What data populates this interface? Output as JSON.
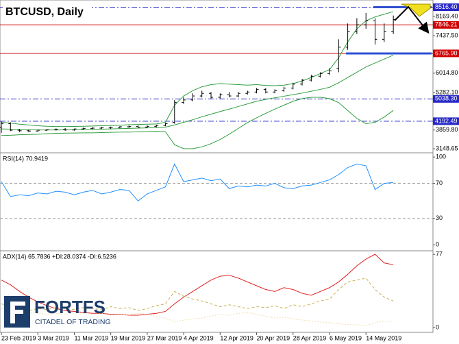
{
  "chart_data": [
    {
      "type": "ohlc",
      "title": "BTCUSD, Daily",
      "color": "#000000",
      "x": [
        0,
        2,
        4,
        6,
        8,
        10,
        12,
        14,
        16,
        18,
        20,
        22,
        24,
        26,
        28,
        30,
        32,
        34,
        36,
        38,
        40,
        42,
        44,
        46,
        48,
        50,
        52,
        54,
        56,
        58,
        60,
        62,
        64,
        66,
        68,
        70,
        72,
        74,
        76,
        78,
        80,
        82,
        84,
        86
      ],
      "xlim": [
        -0.3,
        94.7
      ],
      "xticks": [
        {
          "value": 0,
          "label": "23 Feb 2019"
        },
        {
          "value": 8,
          "label": "3 Mar 2019"
        },
        {
          "value": 16,
          "label": "11 Mar 2019"
        },
        {
          "value": 24,
          "label": "19 Mar 2019"
        },
        {
          "value": 32,
          "label": "27 Mar 2019"
        },
        {
          "value": 40,
          "label": "4 Apr 2019"
        },
        {
          "value": 48,
          "label": "12 Apr 2019"
        },
        {
          "value": 56,
          "label": "20 Apr 2019"
        },
        {
          "value": 64,
          "label": "28 Apr 2019"
        },
        {
          "value": 72,
          "label": "6 May 2019"
        },
        {
          "value": 80,
          "label": "14 May 2019"
        }
      ],
      "open": [
        3950,
        4100,
        3850,
        3830,
        3820,
        3850,
        3870,
        3880,
        3860,
        3900,
        3920,
        3930,
        3940,
        3960,
        3980,
        3990,
        3970,
        4000,
        4030,
        4150,
        4900,
        5000,
        5150,
        5250,
        5100,
        5200,
        5150,
        5250,
        5300,
        5400,
        5300,
        5350,
        5450,
        5600,
        5750,
        5900,
        6000,
        6200,
        7000,
        7600,
        7850,
        8000,
        7300,
        7600
      ],
      "high": [
        4200,
        4150,
        3900,
        3880,
        3880,
        3900,
        3920,
        3930,
        3910,
        3950,
        3970,
        3980,
        3990,
        4010,
        4030,
        4040,
        4030,
        4060,
        4120,
        5000,
        5100,
        5250,
        5350,
        5300,
        5250,
        5300,
        5300,
        5350,
        5450,
        5450,
        5400,
        5500,
        5650,
        5800,
        5950,
        6050,
        6200,
        7300,
        7900,
        8100,
        8300,
        8100,
        7900,
        8200
      ],
      "low": [
        3750,
        3820,
        3780,
        3780,
        3790,
        3820,
        3840,
        3830,
        3830,
        3860,
        3890,
        3900,
        3900,
        3920,
        3940,
        3940,
        3930,
        3960,
        4000,
        4100,
        4850,
        4950,
        5100,
        5050,
        5050,
        5100,
        5100,
        5200,
        5250,
        5250,
        5250,
        5300,
        5400,
        5550,
        5700,
        5850,
        5950,
        6050,
        6900,
        7500,
        7700,
        7100,
        7200,
        7500
      ],
      "close": [
        4100,
        3850,
        3830,
        3820,
        3850,
        3870,
        3880,
        3860,
        3900,
        3920,
        3930,
        3940,
        3960,
        3980,
        3990,
        3970,
        4000,
        4030,
        4100,
        4900,
        5000,
        5150,
        5250,
        5100,
        5200,
        5150,
        5250,
        5300,
        5400,
        5300,
        5350,
        5450,
        5600,
        5750,
        5900,
        6000,
        6100,
        7000,
        7600,
        7850,
        8000,
        7300,
        7600,
        8050
      ],
      "series": [
        {
          "color": "#2e9e3e",
          "values": [
            4150,
            4120,
            4080,
            4050,
            4020,
            4000,
            3990,
            3990,
            3995,
            4000,
            4010,
            4020,
            4030,
            4040,
            4060,
            4070,
            4080,
            4090,
            4150,
            4800,
            5150,
            5350,
            5500,
            5580,
            5620,
            5600,
            5580,
            5560,
            5580,
            5550,
            5540,
            5560,
            5620,
            5720,
            5850,
            6000,
            6150,
            6600,
            7200,
            7700,
            8000,
            8150,
            8250,
            8350
          ]
        },
        {
          "color": "#2e9e3e",
          "values": [
            3900,
            3890,
            3880,
            3870,
            3860,
            3860,
            3860,
            3865,
            3870,
            3875,
            3880,
            3890,
            3900,
            3910,
            3920,
            3930,
            3940,
            3950,
            3970,
            4050,
            4150,
            4250,
            4360,
            4460,
            4560,
            4650,
            4750,
            4850,
            4950,
            5020,
            5080,
            5140,
            5200,
            5260,
            5330,
            5400,
            5480,
            5650,
            5850,
            6050,
            6250,
            6400,
            6550,
            6700
          ]
        },
        {
          "color": "#2e9e3e",
          "values": [
            3650,
            3660,
            3680,
            3690,
            3700,
            3720,
            3730,
            3740,
            3745,
            3750,
            3750,
            3760,
            3770,
            3780,
            3780,
            3790,
            3800,
            3810,
            3790,
            3300,
            3150,
            3150,
            3220,
            3340,
            3500,
            3700,
            3920,
            4140,
            4320,
            4490,
            4650,
            4800,
            4950,
            5050,
            5100,
            5100,
            5050,
            4900,
            4600,
            4300,
            4100,
            4150,
            4350,
            4600
          ]
        }
      ],
      "ylim": [
        3020,
        8790
      ],
      "yticks": [
        {
          "value": 8169.4,
          "label": "8169.40"
        },
        {
          "value": 7437.5,
          "label": "7437.50"
        },
        {
          "value": 6014.8,
          "label": "6014.80"
        },
        {
          "value": 5282.1,
          "label": "5282.10"
        },
        {
          "value": 3859.8,
          "label": "3859.80"
        },
        3148.65
      ],
      "levels": [
        {
          "value": 8516.4,
          "label": "8516.40",
          "color": "#2828c8",
          "style": "dashdot"
        },
        {
          "value": 7846.21,
          "label": "7846.21",
          "color": "#d00000",
          "style": "solid"
        },
        {
          "value": 6765.9,
          "label": "6765.90",
          "color": "#d00000",
          "style": "solid"
        },
        {
          "value": 5038.3,
          "label": "5038.30",
          "color": "#2828c8",
          "style": "dashdot"
        },
        {
          "value": 4192.49,
          "label": "4192.49",
          "color": "#2828c8",
          "style": "dashdot"
        }
      ]
    },
    {
      "type": "line",
      "title": "RSI(14) 70.9419",
      "series": [
        {
          "color": "#1e8fff",
          "values": [
            72,
            55,
            57,
            56,
            59,
            58,
            61,
            60,
            57,
            60,
            62,
            58,
            60,
            63,
            62,
            50,
            58,
            62,
            66,
            92,
            72,
            74,
            76,
            73,
            75,
            64,
            67,
            66,
            68,
            67,
            70,
            65,
            64,
            67,
            68,
            71,
            74,
            80,
            88,
            92,
            90,
            63,
            70,
            71
          ]
        }
      ],
      "ylim": [
        -6,
        104
      ],
      "yticks": [
        100,
        70,
        30,
        0
      ],
      "levels": [
        {
          "value": 70,
          "color": "#999999",
          "style": "dashed"
        },
        {
          "value": 30,
          "color": "#999999",
          "style": "dashed"
        }
      ]
    },
    {
      "type": "line",
      "title": "ADX(14) 65.7836 +DI:28.0374 -DI:6.5236",
      "series": [
        {
          "color": "#e02020",
          "style": "solid",
          "values": [
            50,
            45,
            38,
            32,
            27,
            23,
            20,
            18,
            17,
            16,
            15,
            15,
            14,
            14,
            13,
            13,
            14,
            15,
            17,
            25,
            32,
            38,
            44,
            50,
            54,
            55,
            52,
            48,
            44,
            40,
            38,
            42,
            40,
            36,
            34,
            38,
            42,
            48,
            56,
            65,
            72,
            77,
            68,
            66
          ]
        },
        {
          "color": "#c8b050",
          "style": "dashed",
          "values": [
            25,
            22,
            20,
            18,
            20,
            19,
            21,
            20,
            19,
            21,
            20,
            19,
            22,
            20,
            21,
            18,
            20,
            23,
            25,
            38,
            33,
            30,
            28,
            25,
            22,
            24,
            22,
            20,
            22,
            21,
            23,
            20,
            24,
            22,
            25,
            28,
            30,
            40,
            48,
            50,
            52,
            40,
            32,
            28
          ]
        },
        {
          "color": "#e8d49a",
          "style": "dotted",
          "values": [
            20,
            18,
            17,
            16,
            15,
            14,
            15,
            14,
            16,
            15,
            14,
            15,
            13,
            14,
            13,
            15,
            14,
            12,
            10,
            6,
            8,
            9,
            10,
            12,
            14,
            13,
            15,
            16,
            14,
            12,
            10,
            11,
            9,
            8,
            7,
            6,
            5,
            4,
            3,
            3,
            2,
            5,
            7,
            6.5
          ]
        }
      ],
      "ylim": [
        -5,
        80
      ],
      "yticks": [
        77,
        0
      ]
    }
  ],
  "logo": {
    "name": "FORTFS",
    "tagline": "CITADEL OF TRADING"
  }
}
